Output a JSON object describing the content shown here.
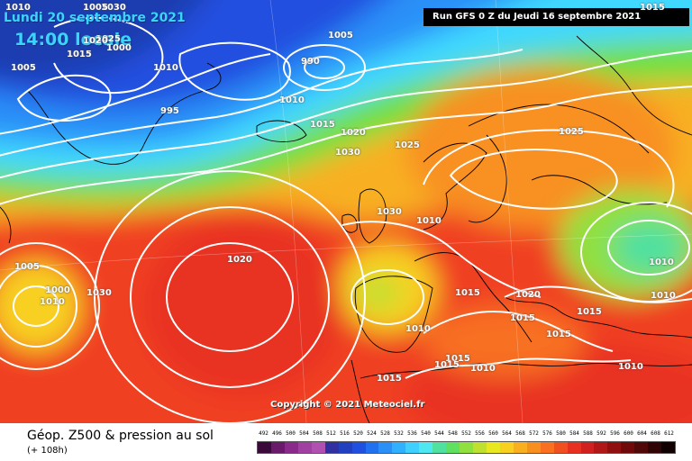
{
  "title_line1": "Lundi 20 septembre 2021",
  "title_line2": "14:00 locale",
  "run_info": "Run GFS 0 Z du Jeudi 16 septembre 2021",
  "copyright": "Copyright © 2021 Meteociel.fr",
  "legend": {
    "title": "Géop. Z500 & pression au sol",
    "subtitle": "(+ 108h)",
    "ticks": [
      "492",
      "496",
      "500",
      "504",
      "508",
      "512",
      "516",
      "520",
      "524",
      "528",
      "532",
      "536",
      "540",
      "544",
      "548",
      "552",
      "556",
      "560",
      "564",
      "568",
      "572",
      "576",
      "580",
      "584",
      "588",
      "592",
      "596",
      "600",
      "604",
      "608",
      "612"
    ],
    "colors": [
      "#3a0a3a",
      "#6a1a6a",
      "#8a2a8a",
      "#a040a0",
      "#b050b0",
      "#3030a0",
      "#2040c0",
      "#2050e0",
      "#2070f0",
      "#2a90f8",
      "#30b0ff",
      "#40d0ff",
      "#50e8f0",
      "#50e0a0",
      "#60e060",
      "#90e040",
      "#c0e030",
      "#e8e820",
      "#f8d020",
      "#f8b020",
      "#f89020",
      "#f87020",
      "#f05020",
      "#e83020",
      "#d02020",
      "#b01818",
      "#901010",
      "#700a0a",
      "#500808",
      "#300404",
      "#100000"
    ]
  },
  "pressure_labels": [
    "1030",
    "1025",
    "1005",
    "1015",
    "1020",
    "1010",
    "1000",
    "995",
    "990",
    "1005",
    "1010",
    "1015",
    "1020",
    "1030",
    "1025",
    "1025",
    "1030",
    "1010",
    "1020",
    "1005",
    "1000",
    "1010",
    "1030",
    "1010",
    "1010",
    "1015",
    "1020",
    "1015",
    "1015",
    "1015",
    "1010",
    "1015",
    "1015",
    "1010",
    "1010",
    "1015",
    "1010",
    "1015",
    "1005"
  ]
}
